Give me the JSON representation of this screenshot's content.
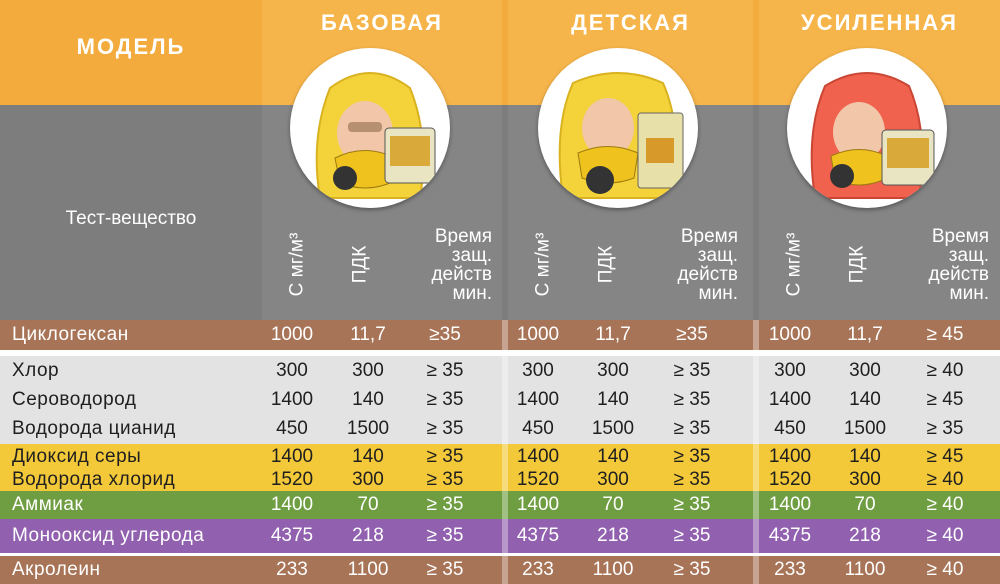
{
  "header": {
    "model_label": "МОДЕЛЬ",
    "test_substance_label": "Тест-вещество",
    "variants": [
      {
        "title": "БАЗОВАЯ",
        "hood_color": "#f4d23a"
      },
      {
        "title": "ДЕТСКАЯ",
        "hood_color": "#f4d23a"
      },
      {
        "title": "УСИЛЕННАЯ",
        "hood_color": "#f0614e"
      }
    ],
    "col_conc": "С мг/м³",
    "col_pdk": "ПДК",
    "col_time_lines": [
      "Время",
      "защ.",
      "действ",
      "мин."
    ]
  },
  "colors": {
    "orange": "#f2ab3c",
    "gray": "#7d7d7d",
    "brown": "#a87457",
    "light": "#e3e3e3",
    "yellow": "#f3c93a",
    "green": "#6f9e42",
    "purple": "#9161b0"
  },
  "rows": [
    {
      "name": "Циклогексан",
      "values": [
        "1000",
        "11,7",
        "≥35",
        "1000",
        "11,7",
        "≥35",
        "1000",
        "11,7",
        "≥ 45"
      ]
    },
    {
      "name": "Хлор",
      "values": [
        "300",
        "300",
        "≥ 35",
        "300",
        "300",
        "≥ 35",
        "300",
        "300",
        "≥ 40"
      ]
    },
    {
      "name": "Сероводород",
      "values": [
        "1400",
        "140",
        "≥ 35",
        "1400",
        "140",
        "≥ 35",
        "1400",
        "140",
        "≥ 45"
      ]
    },
    {
      "name": "Водорода цианид",
      "values": [
        "450",
        "1500",
        "≥ 35",
        "450",
        "1500",
        "≥ 35",
        "450",
        "1500",
        "≥ 35"
      ]
    },
    {
      "name": "Диоксид серы",
      "values": [
        "1400",
        "140",
        "≥ 35",
        "1400",
        "140",
        "≥ 35",
        "1400",
        "140",
        "≥ 45"
      ]
    },
    {
      "name": "Водорода хлорид",
      "values": [
        "1520",
        "300",
        "≥ 35",
        "1520",
        "300",
        "≥ 35",
        "1520",
        "300",
        "≥ 40"
      ]
    },
    {
      "name": "Аммиак",
      "values": [
        "1400",
        "70",
        "≥ 35",
        "1400",
        "70",
        "≥ 35",
        "1400",
        "70",
        "≥ 40"
      ]
    },
    {
      "name": "Монооксид углерода",
      "values": [
        "4375",
        "218",
        "≥ 35",
        "4375",
        "218",
        "≥ 35",
        "4375",
        "218",
        "≥ 40"
      ]
    },
    {
      "name": "Акролеин",
      "values": [
        "233",
        "1100",
        "≥ 35",
        "233",
        "1100",
        "≥ 35",
        "233",
        "1100",
        "≥ 40"
      ]
    }
  ]
}
